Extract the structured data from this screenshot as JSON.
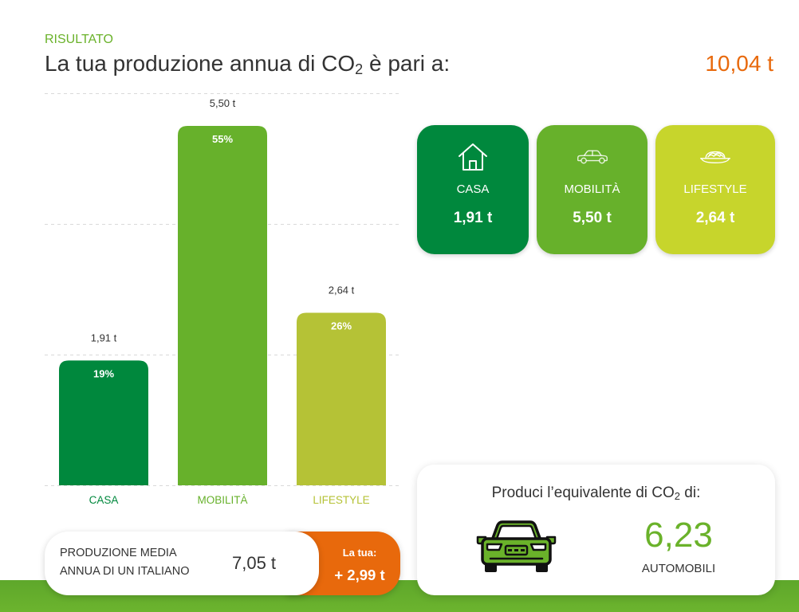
{
  "header": {
    "kicker": "RISULTATO",
    "title_before": "La tua produzione annua di CO",
    "title_sub": "2",
    "title_after": " è pari a:",
    "total": "10,04 t"
  },
  "colors": {
    "accent_green": "#6ab22a",
    "accent_orange": "#e8690c",
    "text": "#333333",
    "casa": "#00883d",
    "mobilita": "#67b12b",
    "lifestyle_bar": "#b5c236",
    "lifestyle_card": "#c7d52c"
  },
  "chart_data": {
    "type": "bar",
    "categories": [
      "CASA",
      "MOBILITÀ",
      "LIFESTYLE"
    ],
    "values": [
      1.91,
      5.5,
      2.64
    ],
    "value_labels": [
      "1,91 t",
      "5,50 t",
      "2,64 t"
    ],
    "percent_labels": [
      "19%",
      "55%",
      "26%"
    ],
    "ylim": [
      0,
      6
    ],
    "grid": true,
    "colors": [
      "#00883d",
      "#67b12b",
      "#b5c236"
    ]
  },
  "cards": [
    {
      "icon": "house-icon",
      "label": "CASA",
      "value": "1,91 t",
      "color": "#00883d"
    },
    {
      "icon": "car-side-icon",
      "label": "MOBILITÀ",
      "value": "5,50 t",
      "color": "#67b12b"
    },
    {
      "icon": "food-plate-icon",
      "label": "LIFESTYLE",
      "value": "2,64 t",
      "color": "#c7d52c"
    }
  ],
  "average": {
    "label": [
      "PRODUZIONE MEDIA",
      "ANNUA DI UN ITALIANO"
    ],
    "value": "7,05 t",
    "yours_label": "La tua:",
    "yours_diff": "+ 2,99 t"
  },
  "equivalent": {
    "title_before": "Produci l’equivalente di CO",
    "title_sub": "2",
    "title_after": " di:",
    "icon": "car-front-icon",
    "value": "6,23",
    "unit_label": "AUTOMOBILI"
  }
}
